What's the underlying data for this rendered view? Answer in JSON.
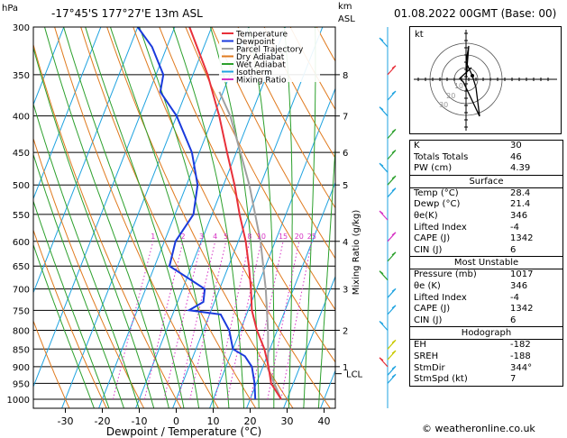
{
  "header": {
    "unit_hpa": "hPa",
    "location": "-17°45'S 177°27'E 13m ASL",
    "km_label": "km",
    "asl_label": "ASL",
    "datetime": "01.08.2022 00GMT (Base: 00)"
  },
  "chart_data": {
    "type": "skew-t",
    "xlabel": "Dewpoint / Temperature (°C)",
    "ylabel_right": "Mixing Ratio (g/kg)",
    "x_ticks": [
      -30,
      -20,
      -10,
      0,
      10,
      20,
      30,
      40
    ],
    "pressure_levels": [
      300,
      350,
      400,
      450,
      500,
      550,
      600,
      650,
      700,
      750,
      800,
      850,
      900,
      950,
      1000
    ],
    "legend": [
      {
        "label": "Temperature",
        "color": "#e8303a"
      },
      {
        "label": "Dewpoint",
        "color": "#1a3adc"
      },
      {
        "label": "Parcel Trajectory",
        "color": "#a0a0a0"
      },
      {
        "label": "Dry Adiabat",
        "color": "#e07a1e"
      },
      {
        "label": "Wet Adiabat",
        "color": "#2ca02c"
      },
      {
        "label": "Isotherm",
        "color": "#1fa3e0"
      },
      {
        "label": "Mixing Ratio",
        "color": "#d633c4"
      }
    ],
    "mixing_ratio_labels": [
      "1",
      "2",
      "3",
      "4",
      "5",
      "8",
      "10",
      "15",
      "20",
      "25"
    ],
    "temperature": [
      {
        "p": 1000,
        "t": 28.4
      },
      {
        "p": 950,
        "t": 24
      },
      {
        "p": 900,
        "t": 21.5
      },
      {
        "p": 850,
        "t": 18.5
      },
      {
        "p": 800,
        "t": 14.5
      },
      {
        "p": 750,
        "t": 11
      },
      {
        "p": 700,
        "t": 8.5
      },
      {
        "p": 650,
        "t": 5.5
      },
      {
        "p": 600,
        "t": 2
      },
      {
        "p": 550,
        "t": -2.5
      },
      {
        "p": 500,
        "t": -7
      },
      {
        "p": 450,
        "t": -12.5
      },
      {
        "p": 400,
        "t": -18.5
      },
      {
        "p": 350,
        "t": -26
      },
      {
        "p": 300,
        "t": -36
      }
    ],
    "dewpoint": [
      {
        "p": 1000,
        "t": 21.4
      },
      {
        "p": 950,
        "t": 19.5
      },
      {
        "p": 900,
        "t": 17
      },
      {
        "p": 870,
        "t": 14
      },
      {
        "p": 850,
        "t": 10
      },
      {
        "p": 800,
        "t": 7
      },
      {
        "p": 760,
        "t": 3
      },
      {
        "p": 750,
        "t": -6
      },
      {
        "p": 730,
        "t": -3
      },
      {
        "p": 700,
        "t": -4
      },
      {
        "p": 650,
        "t": -16
      },
      {
        "p": 600,
        "t": -17
      },
      {
        "p": 550,
        "t": -15
      },
      {
        "p": 500,
        "t": -17
      },
      {
        "p": 450,
        "t": -22
      },
      {
        "p": 400,
        "t": -30
      },
      {
        "p": 370,
        "t": -37
      },
      {
        "p": 350,
        "t": -38
      },
      {
        "p": 320,
        "t": -44
      },
      {
        "p": 300,
        "t": -50
      }
    ],
    "parcel": [
      {
        "p": 1000,
        "t": 28.4
      },
      {
        "p": 905,
        "t": 21.5
      },
      {
        "p": 850,
        "t": 19.5
      },
      {
        "p": 800,
        "t": 17.5
      },
      {
        "p": 700,
        "t": 12.5
      },
      {
        "p": 600,
        "t": 6
      },
      {
        "p": 500,
        "t": -3
      },
      {
        "p": 400,
        "t": -15.5
      },
      {
        "p": 370,
        "t": -21
      }
    ],
    "height_km_labels": [
      {
        "p": 350,
        "label": "8"
      },
      {
        "p": 400,
        "label": "7"
      },
      {
        "p": 450,
        "label": "6"
      },
      {
        "p": 500,
        "label": "5"
      },
      {
        "p": 600,
        "label": "4"
      },
      {
        "p": 700,
        "label": "3"
      },
      {
        "p": 800,
        "label": "2"
      },
      {
        "p": 900,
        "label": "1"
      }
    ],
    "lcl_label": "LCL",
    "lcl_pressure": 910
  },
  "hodograph": {
    "label": "kt",
    "ring_labels": [
      "10",
      "20",
      "30"
    ]
  },
  "indices": {
    "rows": [
      {
        "label": "K",
        "value": "30"
      },
      {
        "label": "Totals Totals",
        "value": "46"
      },
      {
        "label": "PW (cm)",
        "value": "4.39"
      }
    ]
  },
  "surface": {
    "title": "Surface",
    "rows": [
      {
        "label": "Temp (°C)",
        "value": "28.4"
      },
      {
        "label": "Dewp (°C)",
        "value": "21.4"
      },
      {
        "label": "θe(K)",
        "value": "346"
      },
      {
        "label": "Lifted Index",
        "value": "-4"
      },
      {
        "label": "CAPE (J)",
        "value": "1342"
      },
      {
        "label": "CIN (J)",
        "value": "6"
      }
    ]
  },
  "most_unstable": {
    "title": "Most Unstable",
    "rows": [
      {
        "label": "Pressure (mb)",
        "value": "1017"
      },
      {
        "label": "θe (K)",
        "value": "346"
      },
      {
        "label": "Lifted Index",
        "value": "-4"
      },
      {
        "label": "CAPE (J)",
        "value": "1342"
      },
      {
        "label": "CIN (J)",
        "value": "6"
      }
    ]
  },
  "hodograph_table": {
    "title": "Hodograph",
    "rows": [
      {
        "label": "EH",
        "value": "-182"
      },
      {
        "label": "SREH",
        "value": "-188"
      },
      {
        "label": "StmDir",
        "value": "344°"
      },
      {
        "label": "StmSpd (kt)",
        "value": "7"
      }
    ]
  },
  "credit": "© weatheronline.co.uk"
}
